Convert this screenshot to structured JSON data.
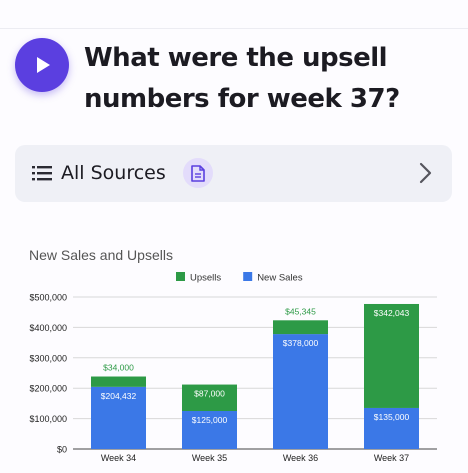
{
  "question": {
    "line1": "What were the upsell",
    "line2": "numbers for week 37?"
  },
  "sources": {
    "label": "All Sources"
  },
  "icons": {
    "play": "play-icon",
    "list": "list-icon",
    "document": "document-icon",
    "chevron": "chevron-right-icon"
  },
  "colors": {
    "accent": "#5b3fe0",
    "new_sales": "#3b78e7",
    "upsells": "#2d9a46"
  },
  "chart_data": {
    "type": "bar",
    "stacked": true,
    "title": "New Sales and Upsells",
    "categories": [
      "Week 34",
      "Week 35",
      "Week 36",
      "Week 37"
    ],
    "series": [
      {
        "name": "New Sales",
        "values": [
          204432,
          125000,
          378000,
          135000
        ],
        "labels": [
          "$204,432",
          "$125,000",
          "$378,000",
          "$135,000"
        ]
      },
      {
        "name": "Upsells",
        "values": [
          34000,
          87000,
          45345,
          342043
        ],
        "labels": [
          "$34,000",
          "$87,000",
          "$45,345",
          "$342,043"
        ]
      }
    ],
    "ylim": [
      0,
      500000
    ],
    "yticks": [
      "$0",
      "$100,000",
      "$200,000",
      "$300,000",
      "$400,000",
      "$500,000"
    ],
    "legend": "top",
    "grid": true
  }
}
